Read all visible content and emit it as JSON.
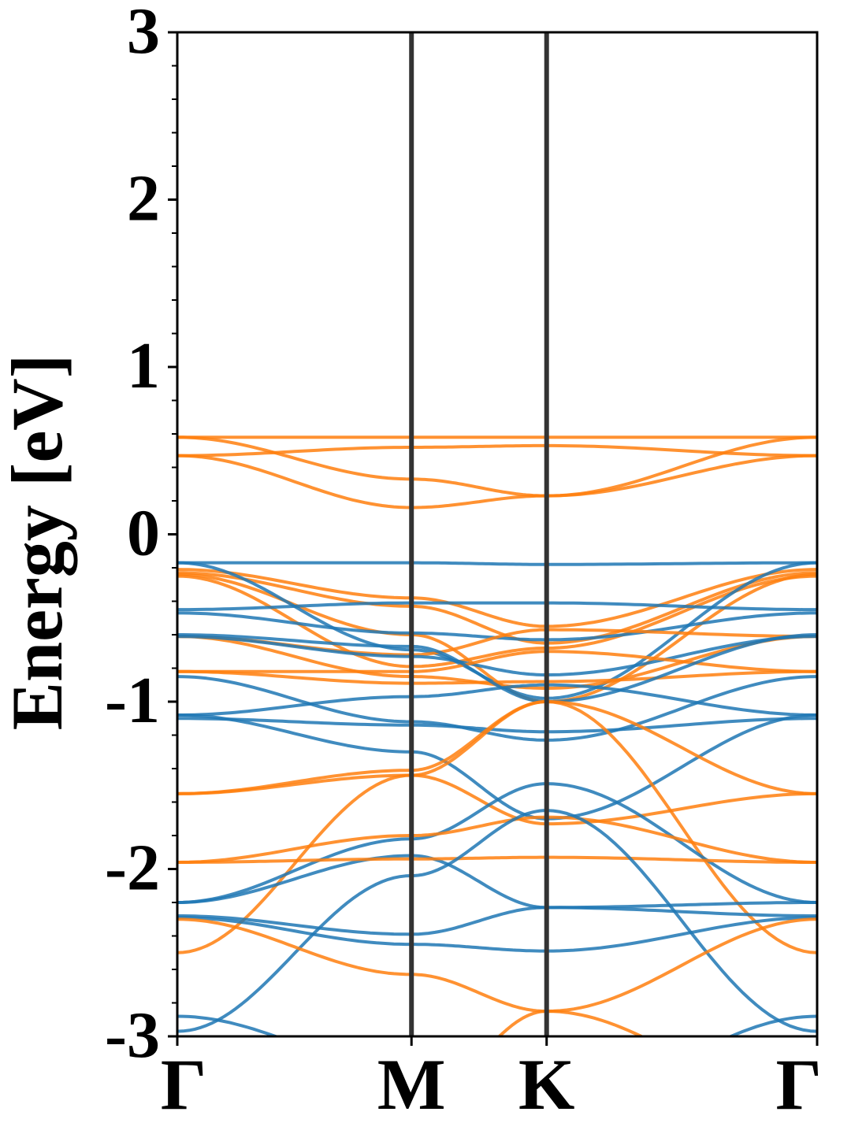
{
  "chart_data": {
    "type": "line",
    "title": "",
    "xlabel": "",
    "ylabel": "Energy [eV]",
    "ylim": [
      -3,
      3
    ],
    "x_ticks": [
      {
        "label": "Γ",
        "k": 0.0
      },
      {
        "label": "M",
        "k": 1.0
      },
      {
        "label": "K",
        "k": 1.577
      },
      {
        "label": "Γ",
        "k": 2.732
      }
    ],
    "y_ticks": [
      "-3",
      "-2",
      "-1",
      "0",
      "1",
      "2",
      "3"
    ],
    "y_minor_step": 0.2,
    "grid": false,
    "legend": "none",
    "colors": {
      "blue": "#1f77b4",
      "orange": "#ff7f0e",
      "kpoint_line": "#333333"
    },
    "series": [
      {
        "color": "orange",
        "gamma": 0.58,
        "m": 0.58,
        "k": 0.58,
        "gamma_end": 0.58
      },
      {
        "color": "orange",
        "gamma": 0.47,
        "m": 0.52,
        "k": 0.53,
        "gamma_end": 0.47
      },
      {
        "color": "orange",
        "gamma": 0.58,
        "m": 0.33,
        "k": 0.23,
        "gamma_end": 0.47
      },
      {
        "color": "orange",
        "gamma": 0.47,
        "m": 0.16,
        "k": 0.23,
        "gamma_end": 0.58
      },
      {
        "color": "blue",
        "gamma": -0.17,
        "m": -0.17,
        "k": -0.18,
        "gamma_end": -0.17
      },
      {
        "color": "orange",
        "gamma": -0.21,
        "m": -0.38,
        "k": -0.55,
        "gamma_end": -0.21
      },
      {
        "color": "orange",
        "gamma": -0.23,
        "m": -0.43,
        "k": -0.65,
        "gamma_end": -0.23
      },
      {
        "color": "orange",
        "gamma": -0.24,
        "m": -0.6,
        "k": -1.0,
        "gamma_end": -0.24
      },
      {
        "color": "orange",
        "gamma": -0.25,
        "m": -0.79,
        "k": -0.68,
        "gamma_end": -0.25
      },
      {
        "color": "blue",
        "gamma": -0.17,
        "m": -0.69,
        "k": -0.98,
        "gamma_end": -0.17
      },
      {
        "color": "blue",
        "gamma": -0.45,
        "m": -0.41,
        "k": -0.41,
        "gamma_end": -0.45
      },
      {
        "color": "blue",
        "gamma": -0.47,
        "m": -0.59,
        "k": -0.63,
        "gamma_end": -0.47
      },
      {
        "color": "orange",
        "gamma": -0.61,
        "m": -0.72,
        "k": -0.57,
        "gamma_end": -0.61
      },
      {
        "color": "orange",
        "gamma": -0.61,
        "m": -0.85,
        "k": -0.92,
        "gamma_end": -0.61
      },
      {
        "color": "blue",
        "gamma": -0.61,
        "m": -0.73,
        "k": -0.84,
        "gamma_end": -0.61
      },
      {
        "color": "orange",
        "gamma": -0.82,
        "m": -0.82,
        "k": -0.7,
        "gamma_end": -0.82
      },
      {
        "color": "orange",
        "gamma": -0.82,
        "m": -0.89,
        "k": -0.88,
        "gamma_end": -0.82
      },
      {
        "color": "blue",
        "gamma": -0.85,
        "m": -1.12,
        "k": -1.23,
        "gamma_end": -0.85
      },
      {
        "color": "blue",
        "gamma": -1.08,
        "m": -0.97,
        "k": -0.9,
        "gamma_end": -1.08
      },
      {
        "color": "blue",
        "gamma": -1.1,
        "m": -1.14,
        "k": -1.18,
        "gamma_end": -1.1
      },
      {
        "color": "blue",
        "gamma": -0.6,
        "m": -0.67,
        "k": -1.0,
        "gamma_end": -0.6
      },
      {
        "color": "blue",
        "gamma": -1.08,
        "m": -1.3,
        "k": -1.7,
        "gamma_end": -1.08
      },
      {
        "color": "orange",
        "gamma": -1.55,
        "m": -1.41,
        "k": -1.0,
        "gamma_end": -1.55
      },
      {
        "color": "orange",
        "gamma": -1.55,
        "m": -1.44,
        "k": -1.73,
        "gamma_end": -1.55
      },
      {
        "color": "orange",
        "gamma": -2.5,
        "m": -1.44,
        "k": -1.0,
        "gamma_end": -2.5
      },
      {
        "color": "blue",
        "gamma": -2.2,
        "m": -1.82,
        "k": -1.49,
        "gamma_end": -2.2
      },
      {
        "color": "blue",
        "gamma": -2.2,
        "m": -1.92,
        "k": -2.23,
        "gamma_end": -2.2
      },
      {
        "color": "orange",
        "gamma": -1.96,
        "m": -1.8,
        "k": -1.69,
        "gamma_end": -1.96
      },
      {
        "color": "orange",
        "gamma": -1.96,
        "m": -1.94,
        "k": -1.93,
        "gamma_end": -1.96
      },
      {
        "color": "blue",
        "gamma": -2.97,
        "m": -2.04,
        "k": -1.65,
        "gamma_end": -2.97
      },
      {
        "color": "blue",
        "gamma": -2.28,
        "m": -2.39,
        "k": -2.23,
        "gamma_end": -2.28
      },
      {
        "color": "blue",
        "gamma": -2.29,
        "m": -2.45,
        "k": -2.49,
        "gamma_end": -2.29
      },
      {
        "color": "orange",
        "gamma": -2.3,
        "m": -2.63,
        "k": -2.85,
        "gamma_end": -2.3
      },
      {
        "color": "blue",
        "gamma": -2.88,
        "m": -3.2,
        "k": -3.4,
        "gamma_end": -2.88
      },
      {
        "color": "orange",
        "gamma": -3.4,
        "m": -3.4,
        "k": -2.85,
        "gamma_end": -3.4
      }
    ]
  }
}
